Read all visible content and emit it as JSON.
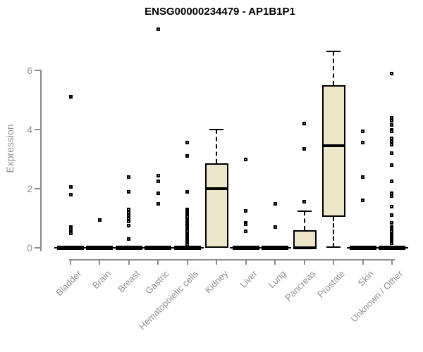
{
  "colors": {
    "box_fill": "#ece7ca",
    "box_border": "#000000",
    "axis": "#8a8a8a",
    "axis_text": "#8f8f8f",
    "title_text": "#000000"
  },
  "chart_data": {
    "type": "boxplot",
    "title": "ENSG00000234479 - AP1B1P1",
    "ylabel": "Expression",
    "xlabel": "",
    "yticks": [
      0,
      2,
      4,
      6
    ],
    "ylim": [
      0,
      7.5
    ],
    "grid": false,
    "legend": "none",
    "categories": [
      "Bladder",
      "Brain",
      "Breast",
      "Gastric",
      "Hematopoietic cells",
      "Kidney",
      "Liver",
      "Lung",
      "Pancreas",
      "Prostate",
      "Skin",
      "Unknown / Other"
    ],
    "boxes": [
      {
        "category": "Bladder",
        "q1": 0,
        "median": 0,
        "q3": 0,
        "whisker_low": 0,
        "whisker_high": 0,
        "outliers": [
          5.1,
          2.05,
          1.8,
          0.7,
          0.6,
          0.5
        ]
      },
      {
        "category": "Brain",
        "q1": 0,
        "median": 0,
        "q3": 0,
        "whisker_low": 0,
        "whisker_high": 0,
        "outliers": [
          0.95
        ]
      },
      {
        "category": "Breast",
        "q1": 0,
        "median": 0,
        "q3": 0,
        "whisker_low": 0,
        "whisker_high": 0,
        "outliers": [
          2.4,
          1.9,
          1.3,
          1.2,
          1.1,
          1.0,
          0.9,
          0.75,
          0.3
        ]
      },
      {
        "category": "Gastric",
        "q1": 0,
        "median": 0,
        "q3": 0,
        "whisker_low": 0,
        "whisker_high": 0,
        "outliers": [
          7.4,
          2.45,
          2.25,
          1.85,
          1.5
        ]
      },
      {
        "category": "Hematopoietic cells",
        "q1": 0,
        "median": 0,
        "q3": 0,
        "whisker_low": 0,
        "whisker_high": 0,
        "outliers": [
          3.55,
          3.1,
          1.9,
          1.3,
          1.25,
          1.2,
          1.15,
          1.1,
          1.05,
          1.0,
          0.95,
          0.9,
          0.85,
          0.8,
          0.75,
          0.7,
          0.65,
          0.6,
          0.55,
          0.5,
          0.45,
          0.4,
          0.35,
          0.3,
          0.25,
          0.2,
          0.15,
          0.1
        ]
      },
      {
        "category": "Kidney",
        "q1": 0,
        "median": 2.0,
        "q3": 2.85,
        "whisker_low": 0,
        "whisker_high": 4.0,
        "outliers": []
      },
      {
        "category": "Liver",
        "q1": 0,
        "median": 0,
        "q3": 0,
        "whisker_low": 0,
        "whisker_high": 0,
        "outliers": [
          3.0,
          1.25,
          0.85,
          0.8,
          0.55
        ]
      },
      {
        "category": "Lung",
        "q1": 0,
        "median": 0,
        "q3": 0,
        "whisker_low": 0,
        "whisker_high": 0,
        "outliers": [
          1.5,
          0.7
        ]
      },
      {
        "category": "Pancreas",
        "q1": 0,
        "median": 0,
        "q3": 0.6,
        "whisker_low": 0,
        "whisker_high": 1.25,
        "outliers": [
          4.2,
          3.35,
          1.55
        ]
      },
      {
        "category": "Prostate",
        "q1": 1.05,
        "median": 3.45,
        "q3": 5.5,
        "whisker_low": 0.02,
        "whisker_high": 6.65,
        "outliers": []
      },
      {
        "category": "Skin",
        "q1": 0,
        "median": 0,
        "q3": 0,
        "whisker_low": 0,
        "whisker_high": 0,
        "outliers": [
          3.95,
          3.55,
          2.4,
          1.6
        ]
      },
      {
        "category": "Unknown / Other",
        "q1": 0,
        "median": 0,
        "q3": 0,
        "whisker_low": 0,
        "whisker_high": 0,
        "outliers": [
          5.9,
          4.4,
          4.3,
          4.15,
          4.0,
          3.95,
          3.7,
          3.6,
          3.5,
          3.2,
          2.8,
          2.25,
          1.85,
          1.75,
          1.4,
          1.1,
          0.85,
          0.7,
          0.65,
          0.6,
          0.55,
          0.5,
          0.45,
          0.4,
          0.35,
          0.3,
          0.25,
          0.2,
          0.15
        ]
      }
    ]
  }
}
